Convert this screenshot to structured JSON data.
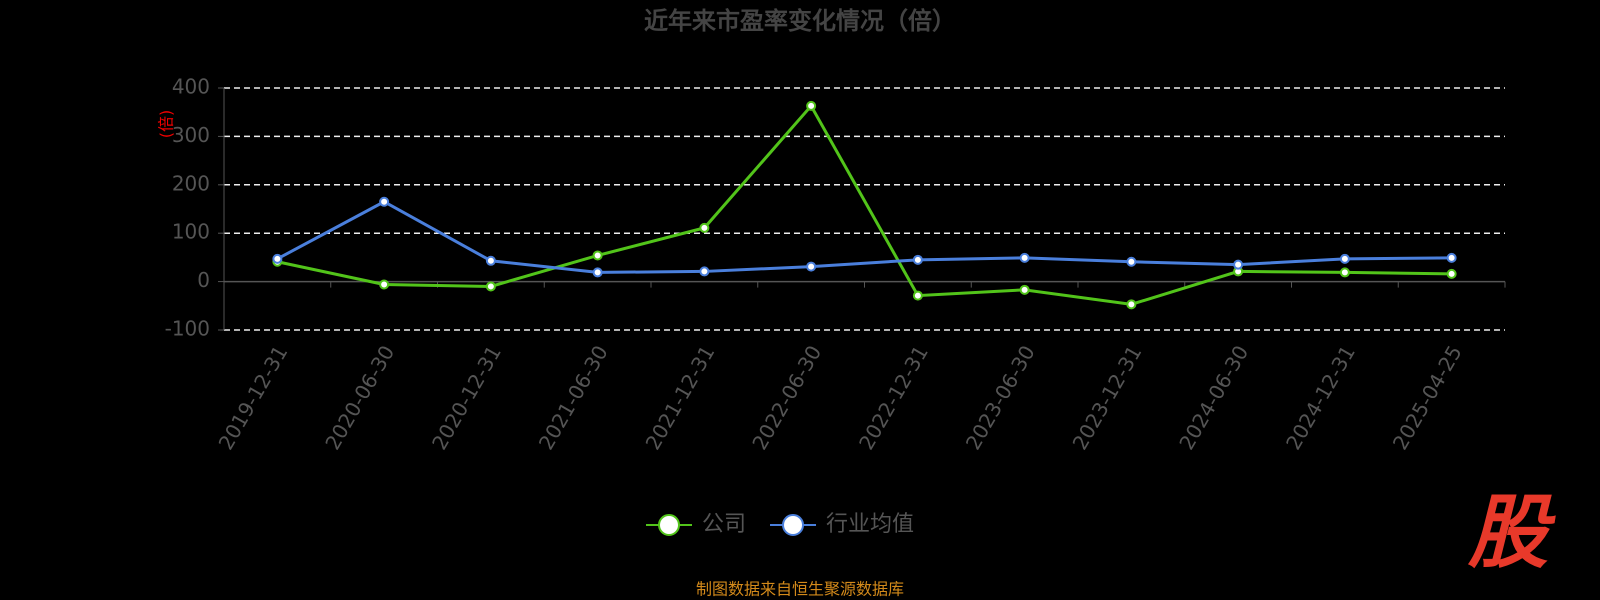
{
  "chart_data": {
    "type": "line",
    "title": "近年来市盈率变化情况（倍）",
    "y_label": "(倍)",
    "categories": [
      "2019-12-31",
      "2020-06-30",
      "2020-12-31",
      "2021-06-30",
      "2021-12-31",
      "2022-06-30",
      "2022-12-31",
      "2023-06-30",
      "2023-12-31",
      "2024-06-30",
      "2024-12-31",
      "2025-04-25"
    ],
    "series": [
      {
        "name": "公司",
        "color": "#52c41a",
        "values": [
          41,
          -6,
          -10,
          54,
          111,
          363,
          -29,
          -17,
          -47,
          21,
          19,
          16
        ]
      },
      {
        "name": "行业均值",
        "color": "#4a7fdc",
        "values": [
          47,
          165,
          43,
          19,
          21,
          31,
          45,
          49,
          41,
          35,
          47,
          49
        ]
      }
    ],
    "ylim": [
      -100,
      400
    ],
    "yticks": [
      -100,
      0,
      100,
      200,
      300,
      400
    ],
    "grid": true,
    "legend": "bottom",
    "source": "制图数据来自恒生聚源数据库",
    "watermark": "股"
  }
}
